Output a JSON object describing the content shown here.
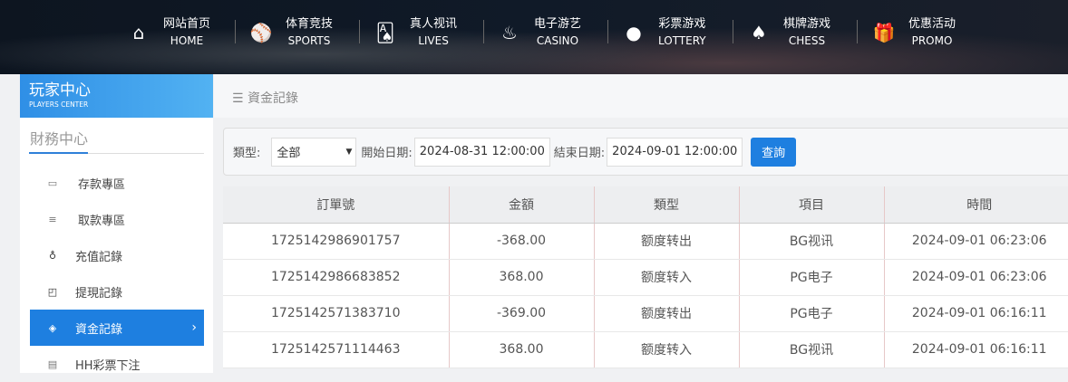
{
  "nav": [
    {
      "cn": "网站首页",
      "en": "HOME",
      "icon": "home-icon"
    },
    {
      "cn": "体育竞技",
      "en": "SPORTS",
      "icon": "ball-icon"
    },
    {
      "cn": "真人视讯",
      "en": "LIVES",
      "icon": "cards-icon"
    },
    {
      "cn": "电子游艺",
      "en": "CASINO",
      "icon": "joystick-icon"
    },
    {
      "cn": "彩票游戏",
      "en": "LOTTERY",
      "icon": "balls-icon"
    },
    {
      "cn": "棋牌游戏",
      "en": "CHESS",
      "icon": "spade-icon"
    },
    {
      "cn": "优惠活动",
      "en": "PROMO",
      "icon": "gift-icon"
    }
  ],
  "sidebar": {
    "title": "玩家中心",
    "subtitle": "PLAYERS CENTER",
    "section": "財務中心",
    "items": [
      {
        "label": "存款專區",
        "icon": "calculator-icon"
      },
      {
        "label": "取款專區",
        "icon": "hand-money-icon"
      },
      {
        "label": "充值記錄",
        "icon": "money-bag-icon"
      },
      {
        "label": "提現記錄",
        "icon": "wallet-icon"
      },
      {
        "label": "資金記錄",
        "icon": "funds-icon",
        "active": true
      },
      {
        "label": "HH彩票下注",
        "icon": "list-icon"
      }
    ]
  },
  "breadcrumb": "資金記錄",
  "filter": {
    "type_label": "類型:",
    "type_value": "全部",
    "start_label": "開始日期:",
    "start_value": "2024-08-31 12:00:00",
    "end_label": "結束日期:",
    "end_value": "2024-09-01 12:00:00",
    "query": "查詢"
  },
  "table": {
    "headers": [
      "訂單號",
      "金額",
      "類型",
      "項目",
      "時間"
    ],
    "rows": [
      [
        "1725142986901757",
        "-368.00",
        "额度转出",
        "BG视讯",
        "2024-09-01 06:23:06"
      ],
      [
        "1725142986683852",
        "368.00",
        "额度转入",
        "PG电子",
        "2024-09-01 06:23:06"
      ],
      [
        "1725142571383710",
        "-369.00",
        "额度转出",
        "PG电子",
        "2024-09-01 06:16:11"
      ],
      [
        "1725142571114463",
        "368.00",
        "额度转入",
        "BG视讯",
        "2024-09-01 06:16:11"
      ]
    ]
  },
  "colors": {
    "accent": "#1e7fe0"
  }
}
